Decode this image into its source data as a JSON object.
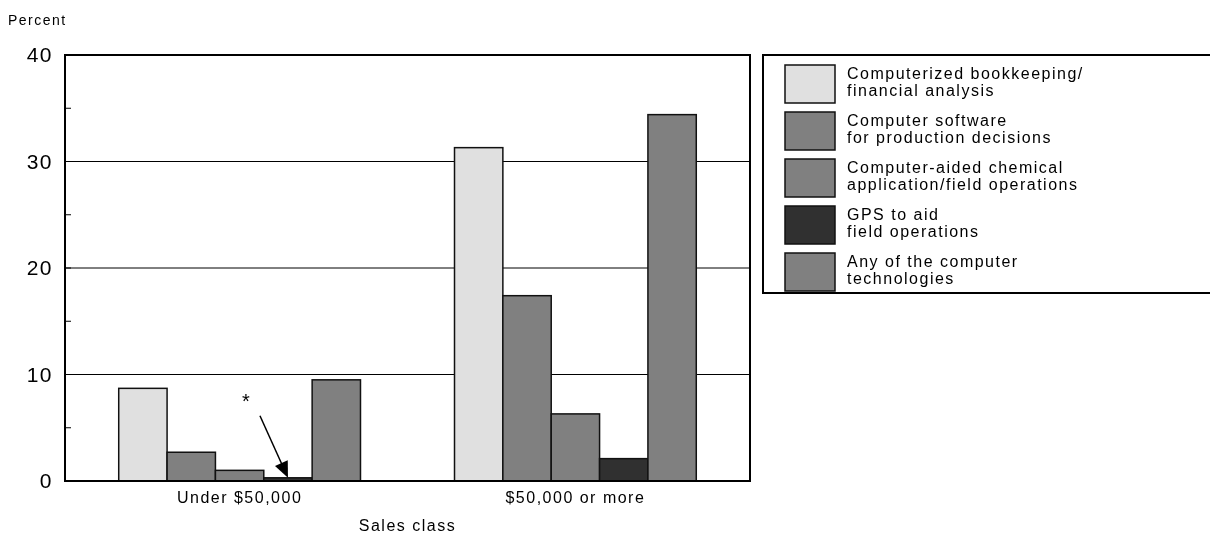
{
  "chart_data": {
    "type": "bar",
    "ylabel": "Percent",
    "xlabel": "Sales class",
    "categories": [
      "Under $50,000",
      "$50,000 or more"
    ],
    "series": [
      {
        "name": "Computerized bookkeeping/\nfinancial analysis",
        "color": "#e0e0e0",
        "values": [
          8.7,
          31.3
        ]
      },
      {
        "name": "Computer software\nfor production decisions",
        "color": "#808080",
        "values": [
          2.7,
          17.4
        ]
      },
      {
        "name": "Computer-aided chemical\napplication/field operations",
        "color": "#808080",
        "values": [
          1.0,
          6.3
        ]
      },
      {
        "name": "GPS to aid\nfield operations",
        "color": "#303030",
        "values": [
          0.3,
          2.1
        ]
      },
      {
        "name": "Any of the computer\ntechnologies",
        "color": "#808080",
        "values": [
          9.5,
          34.4
        ]
      }
    ],
    "ylim": [
      0,
      40
    ],
    "yticks": [
      0,
      {
        "value": 5,
        "label": null
      },
      10,
      {
        "value": 15,
        "label": null
      },
      20,
      {
        "value": 25,
        "label": null
      },
      30,
      {
        "value": 35,
        "label": null
      },
      40
    ],
    "grid": "y",
    "legend": "right",
    "annotations": [
      "*"
    ]
  }
}
